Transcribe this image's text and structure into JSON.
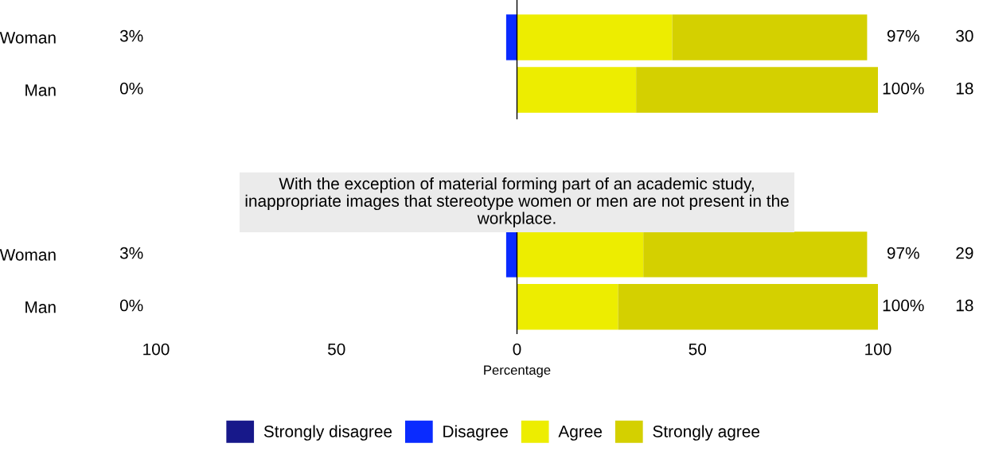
{
  "chart_data": [
    {
      "type": "bar",
      "orientation": "horizontal",
      "stacked": true,
      "categories": [
        "Woman",
        "Man"
      ],
      "series": [
        {
          "name": "Strongly disagree",
          "color": "#17188a",
          "values": [
            0,
            0
          ]
        },
        {
          "name": "Disagree",
          "color": "#0a2bff",
          "values": [
            -3,
            0
          ]
        },
        {
          "name": "Agree",
          "color": "#eded00",
          "values": [
            43,
            33
          ]
        },
        {
          "name": "Strongly agree",
          "color": "#d4d000",
          "values": [
            54,
            67
          ]
        }
      ],
      "xlim": [
        -100,
        100
      ],
      "tick_labels": "y",
      "legend": "bottom",
      "annotations": [
        "3%",
        "0%",
        "97%",
        "100%",
        "30",
        "18"
      ]
    },
    {
      "type": "bar",
      "orientation": "horizontal",
      "stacked": true,
      "categories": [
        "Woman",
        "Man"
      ],
      "title": "With the exception of material forming part of an academic study,\ninappropriate images that stereotype women or men are not present in the\nworkplace.",
      "xlabel": "Percentage",
      "series": [
        {
          "color": "#17188a",
          "values": [
            0,
            0
          ]
        },
        {
          "color": "#0a2bff",
          "values": [
            -3,
            0
          ]
        },
        {
          "color": "#eded00",
          "values": [
            35,
            28
          ]
        },
        {
          "color": "#d4d000",
          "values": [
            62,
            72
          ]
        }
      ],
      "xlim": [
        -100,
        100
      ],
      "xticks": [
        {
          "value": -100,
          "label": "100"
        },
        {
          "value": -50,
          "label": "50"
        },
        0,
        50,
        100
      ],
      "annotations": [
        "3%",
        "0%",
        "97%",
        "100%",
        "29",
        "18"
      ]
    }
  ]
}
